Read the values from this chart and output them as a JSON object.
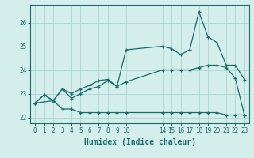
{
  "xlabel": "Humidex (Indice chaleur)",
  "bg_color": "#d4eeeb",
  "grid_color": "#b0d8d4",
  "line_color": "#1a6b6b",
  "x_ticks": [
    0,
    1,
    2,
    3,
    4,
    5,
    6,
    7,
    8,
    9,
    10,
    14,
    15,
    16,
    17,
    18,
    19,
    20,
    21,
    22,
    23
  ],
  "ylim": [
    21.75,
    26.75
  ],
  "xlim": [
    -0.5,
    23.5
  ],
  "line1_x": [
    0,
    1,
    2,
    3,
    4,
    5,
    6,
    7,
    8,
    9,
    10,
    14,
    15,
    16,
    17,
    18,
    19,
    20,
    21,
    22,
    23
  ],
  "line1_y": [
    22.6,
    22.95,
    22.7,
    22.35,
    22.35,
    22.2,
    22.2,
    22.2,
    22.2,
    22.2,
    22.2,
    22.2,
    22.2,
    22.2,
    22.2,
    22.2,
    22.2,
    22.2,
    22.1,
    22.1,
    22.1
  ],
  "line2_x": [
    0,
    1,
    2,
    3,
    4,
    5,
    6,
    7,
    8,
    9,
    10,
    14,
    15,
    16,
    17,
    18,
    19,
    20,
    21,
    22,
    23
  ],
  "line2_y": [
    22.6,
    22.95,
    22.7,
    23.2,
    22.8,
    23.0,
    23.2,
    23.3,
    23.55,
    23.3,
    23.5,
    24.0,
    24.0,
    24.0,
    24.0,
    24.1,
    24.2,
    24.2,
    24.1,
    23.65,
    22.1
  ],
  "line3_x": [
    0,
    2,
    3,
    4,
    5,
    6,
    7,
    8,
    9,
    10,
    14,
    15,
    16,
    17,
    18,
    19,
    20,
    21,
    22,
    23
  ],
  "line3_y": [
    22.6,
    22.7,
    23.2,
    23.0,
    23.2,
    23.35,
    23.55,
    23.6,
    23.3,
    24.85,
    25.0,
    24.9,
    24.65,
    24.85,
    26.45,
    25.4,
    25.15,
    24.2,
    24.2,
    23.6
  ],
  "yticks": [
    22,
    23,
    24,
    25,
    26
  ]
}
